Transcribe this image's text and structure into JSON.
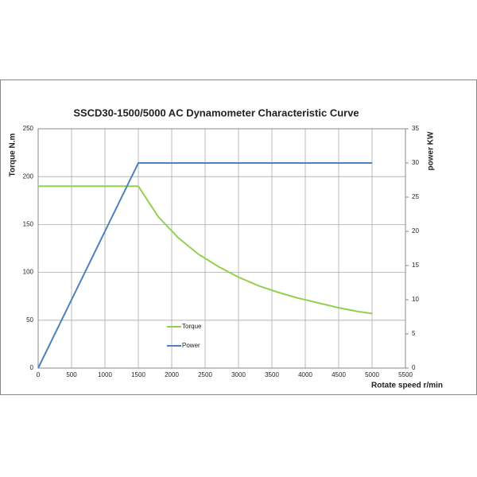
{
  "chart_data": {
    "type": "line",
    "title": "SSCD30-1500/5000  AC Dynamometer Characteristic Curve",
    "x_label": "Rotate speed r/min",
    "y_label": "Torque N.m",
    "y2_label": "power KW",
    "xlim": [
      0,
      5500
    ],
    "xticks": [
      0,
      500,
      1000,
      1500,
      2000,
      2500,
      3000,
      3500,
      4000,
      4500,
      5000,
      5500
    ],
    "ylim": [
      0,
      250
    ],
    "yticks": [
      0,
      50,
      100,
      150,
      200,
      250
    ],
    "y2lim": [
      0,
      35
    ],
    "y2ticks": [
      0,
      5,
      10,
      15,
      20,
      25,
      30,
      35
    ],
    "grid": true,
    "series": [
      {
        "name": "Torque",
        "color": "#92d050",
        "x": [
          0,
          1500,
          1800,
          2100,
          2400,
          2700,
          3000,
          3300,
          3600,
          3900,
          4200,
          4500,
          4800,
          5000
        ],
        "values": [
          190,
          190,
          158,
          136,
          119,
          106,
          95,
          86,
          79,
          73,
          68,
          63,
          59,
          57
        ]
      },
      {
        "name": "Power",
        "color": "#4f81bd",
        "axis": "y2",
        "x": [
          0,
          1500,
          5000
        ],
        "values": [
          0,
          30,
          30
        ]
      }
    ]
  }
}
